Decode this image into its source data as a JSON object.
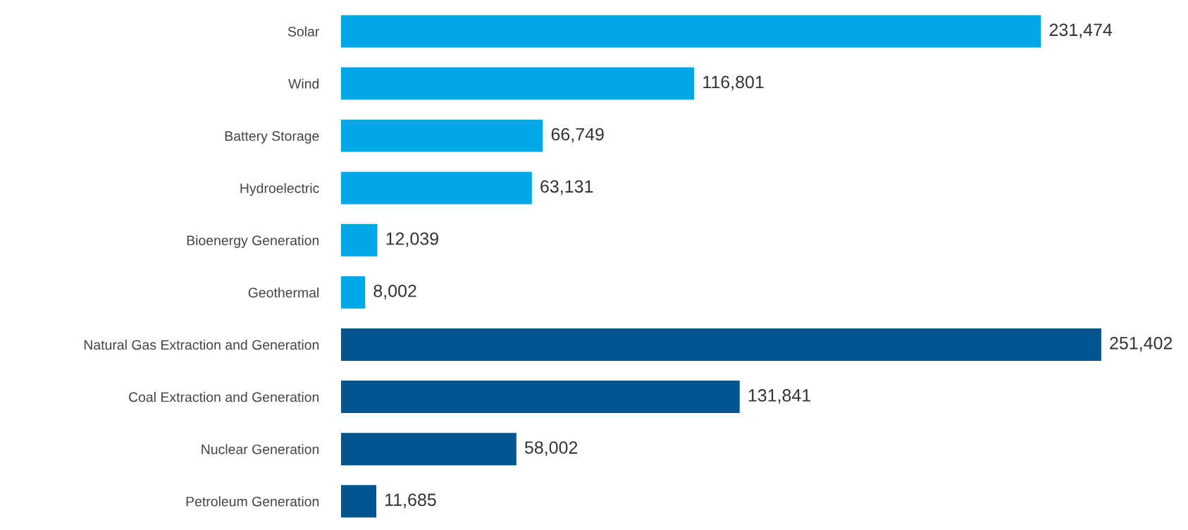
{
  "chart_data": {
    "type": "bar",
    "orientation": "horizontal",
    "value_labels": [
      "231,474",
      "116,801",
      "66,749",
      "63,131",
      "12,039",
      "8,002",
      "251,402",
      "131,841",
      "58,002",
      "11,685"
    ],
    "categories": [
      "Solar",
      "Wind",
      "Battery Storage",
      "Hydroelectric",
      "Bioenergy Generation",
      "Geothermal",
      "Natural Gas Extraction and Generation",
      "Coal Extraction and Generation",
      "Nuclear Generation",
      "Petroleum Generation"
    ],
    "values": [
      231474,
      116801,
      66749,
      63131,
      12039,
      8002,
      251402,
      131841,
      58002,
      11685
    ],
    "colors": [
      "#00a8e8",
      "#00a8e8",
      "#00a8e8",
      "#00a8e8",
      "#00a8e8",
      "#00a8e8",
      "#00558f",
      "#00558f",
      "#00558f",
      "#00558f"
    ]
  }
}
